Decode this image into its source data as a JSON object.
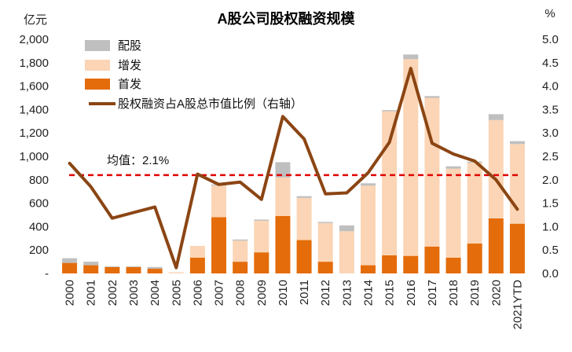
{
  "chart_data": {
    "type": "bar",
    "title": "A股公司股权融资规模",
    "left_unit": "亿元",
    "right_unit": "%",
    "categories": [
      "2000",
      "2001",
      "2002",
      "2003",
      "2004",
      "2005",
      "2006",
      "2007",
      "2008",
      "2009",
      "2010",
      "2011",
      "2012",
      "2013",
      "2014",
      "2015",
      "2016",
      "2017",
      "2018",
      "2019",
      "2020",
      "2021YTD"
    ],
    "series": [
      {
        "name": "首发",
        "kind": "stack",
        "color": "#E46C0A",
        "values": [
          90,
          70,
          55,
          55,
          40,
          0,
          135,
          480,
          100,
          180,
          490,
          285,
          100,
          0,
          70,
          155,
          150,
          230,
          135,
          255,
          470,
          425
        ]
      },
      {
        "name": "增发",
        "kind": "stack",
        "color": "#FBD5B5",
        "values": [
          0,
          0,
          0,
          0,
          0,
          10,
          100,
          270,
          180,
          270,
          330,
          360,
          330,
          360,
          680,
          1230,
          1680,
          1270,
          760,
          690,
          840,
          680
        ]
      },
      {
        "name": "配股",
        "kind": "stack",
        "color": "#BFBFBF",
        "values": [
          40,
          30,
          5,
          5,
          15,
          0,
          0,
          10,
          10,
          10,
          130,
          15,
          10,
          50,
          20,
          10,
          40,
          15,
          20,
          10,
          50,
          25
        ]
      },
      {
        "name": "股权融资占A股总市值比例（右轴）",
        "kind": "line",
        "axis": "right",
        "color": "#8B4513",
        "values": [
          2.35,
          1.85,
          1.18,
          1.3,
          1.42,
          0.12,
          2.12,
          1.9,
          1.95,
          1.58,
          3.35,
          2.87,
          1.7,
          1.72,
          2.15,
          2.8,
          4.38,
          2.78,
          2.55,
          2.4,
          2.0,
          1.37
        ]
      }
    ],
    "legend_order": [
      "配股",
      "增发",
      "首发",
      "股权融资占A股总市值比例（右轴）"
    ],
    "y_left": {
      "min": 0,
      "max": 2000,
      "ticks": [
        0,
        200,
        400,
        600,
        800,
        1000,
        1200,
        1400,
        1600,
        1800,
        2000
      ],
      "tick_labels": [
        "-",
        "200",
        "400",
        "600",
        "800",
        "1,000",
        "1,200",
        "1,400",
        "1,600",
        "1,800",
        "2,000"
      ]
    },
    "y_right": {
      "min": 0,
      "max": 5,
      "ticks": [
        0,
        0.5,
        1,
        1.5,
        2,
        2.5,
        3,
        3.5,
        4,
        4.5,
        5
      ],
      "tick_labels": [
        "0.0",
        "0.5",
        "1.0",
        "1.5",
        "2.0",
        "2.5",
        "3.0",
        "3.5",
        "4.0",
        "4.5",
        "5.0"
      ]
    },
    "mean_line": {
      "value": 2.1,
      "axis": "right",
      "label": "均值：2.1%",
      "color": "#E00000"
    }
  }
}
